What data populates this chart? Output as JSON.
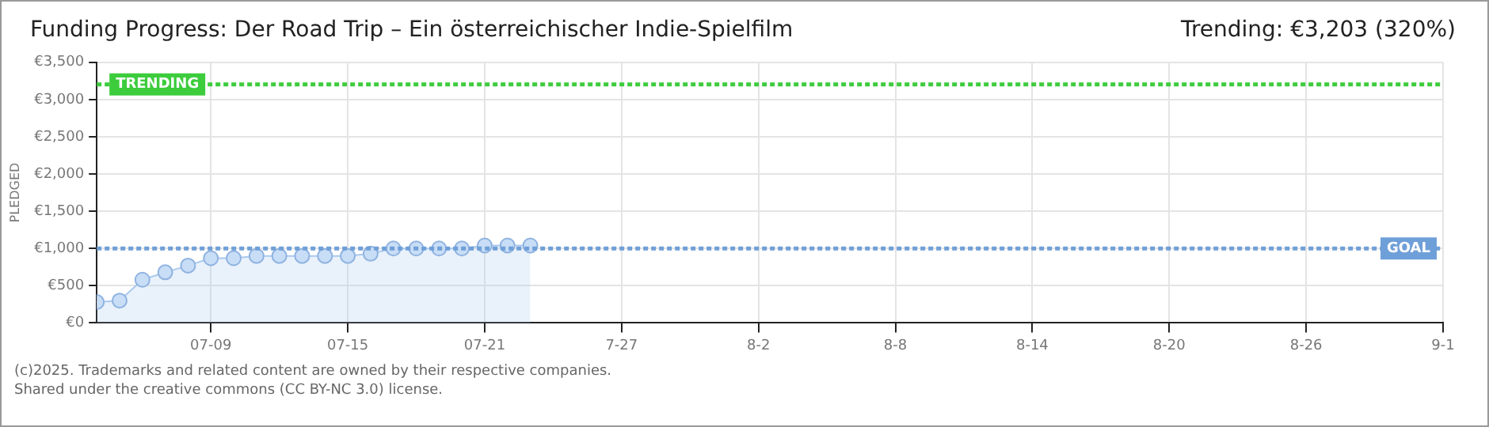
{
  "chart_data": {
    "type": "area",
    "title": "Funding Progress: Der Road Trip – Ein österreichischer Indie-Spielfilm",
    "subtitle": "Trending:  €3,203 (320%)",
    "ylabel": "PLEDGED",
    "x": [
      "--07-04",
      "--07-05",
      "--07-06",
      "--07-07",
      "--07-08",
      "--07-09",
      "--07-10",
      "--07-11",
      "--07-12",
      "--07-13",
      "--07-14",
      "--07-15",
      "--07-16",
      "--07-17",
      "--07-18",
      "--07-19",
      "--07-20",
      "--07-21",
      "--07-22",
      "--07-23"
    ],
    "series": [
      {
        "color": "#a9c9ee",
        "values": [
          280,
          300,
          580,
          680,
          770,
          870,
          870,
          900,
          900,
          900,
          900,
          900,
          930,
          1000,
          1000,
          1000,
          1000,
          1040,
          1040,
          1040
        ]
      }
    ],
    "xlim": [
      "--07-04",
      "--09-01"
    ],
    "xticks": [
      {
        "value": "--07-09",
        "label": "07-09"
      },
      {
        "value": "--07-15",
        "label": "07-15"
      },
      {
        "value": "--07-21",
        "label": "07-21"
      },
      {
        "value": "--07-27",
        "label": "7-27"
      },
      {
        "value": "--08-02",
        "label": "8-2"
      },
      {
        "value": "--08-08",
        "label": "8-8"
      },
      {
        "value": "--08-14",
        "label": "8-14"
      },
      {
        "value": "--08-20",
        "label": "8-20"
      },
      {
        "value": "--08-26",
        "label": "8-26"
      },
      {
        "value": "--09-01",
        "label": "9-1"
      }
    ],
    "ylim": [
      0,
      3500
    ],
    "yticks": [
      {
        "value": 0,
        "label": "€0"
      },
      {
        "value": 500,
        "label": "€500"
      },
      {
        "value": 1000,
        "label": "€1,000"
      },
      {
        "value": 1500,
        "label": "€1,500"
      },
      {
        "value": 2000,
        "label": "€2,000"
      },
      {
        "value": 2500,
        "label": "€2,500"
      },
      {
        "value": 3000,
        "label": "€3,000"
      },
      {
        "value": 3500,
        "label": "€3,500"
      }
    ],
    "ref_lines": [
      {
        "axis": "y",
        "value": 3203,
        "label": "TRENDING",
        "color": "#3ccc3c",
        "line_style": "dotted"
      },
      {
        "axis": "y",
        "value": 1000,
        "label": "GOAL",
        "color": "#6f9fd8",
        "line_style": "dotted"
      }
    ],
    "grid": true,
    "marker": "circle",
    "line_style": "solid",
    "legend": false,
    "annotations": [
      "(c)2025. Trademarks and related content are owned by their respective companies.",
      "Shared under the creative commons (CC BY-NC 3.0) license."
    ]
  }
}
